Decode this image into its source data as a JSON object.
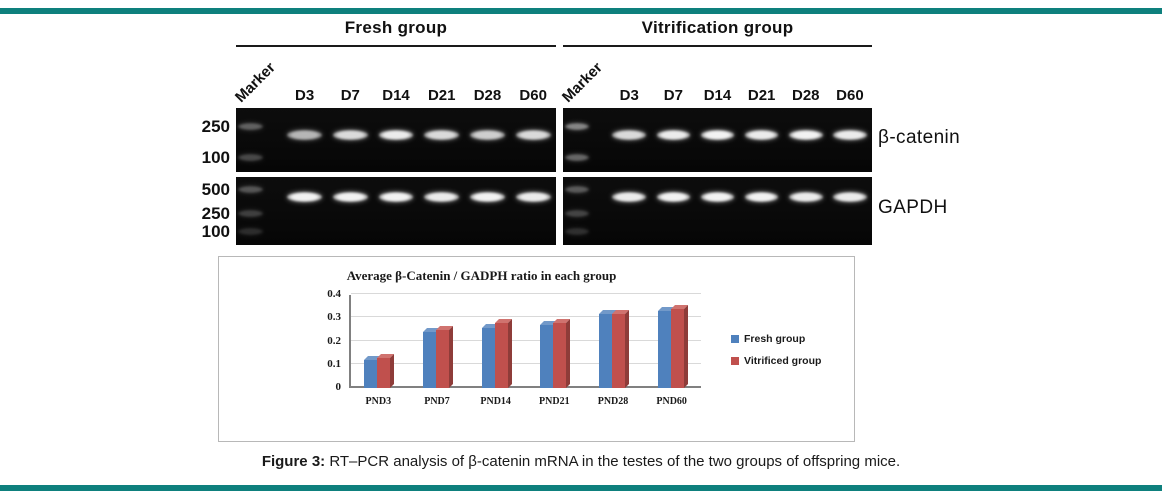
{
  "page": {
    "accent_color": "#0e807d",
    "background": "#ffffff"
  },
  "caption": {
    "label": "Figure 3:",
    "text": " RT–PCR analysis of β-catenin mRNA in the testes of the two groups of offspring mice."
  },
  "gel": {
    "groups": [
      {
        "label": "Fresh group",
        "lanes": [
          "Marker",
          "D3",
          "D7",
          "D14",
          "D21",
          "D28",
          "D60"
        ]
      },
      {
        "label": "Vitrification group",
        "lanes": [
          "Marker",
          "D3",
          "D7",
          "D14",
          "D21",
          "D28",
          "D60"
        ]
      }
    ],
    "rows": [
      {
        "label": "β-catenin",
        "ladder": [
          "250",
          "100"
        ],
        "ladder_offsets": [
          0.3,
          0.78
        ],
        "band_offset": 0.42,
        "intensities": [
          [
            0.35,
            0.7,
            0.85,
            0.92,
            0.85,
            0.8,
            0.85
          ],
          [
            0.5,
            0.85,
            0.92,
            0.95,
            0.92,
            0.95,
            0.92
          ]
        ]
      },
      {
        "label": "GAPDH",
        "ladder": [
          "500",
          "250",
          "100"
        ],
        "ladder_offsets": [
          0.19,
          0.54,
          0.81
        ],
        "band_offset": 0.3,
        "intensities": [
          [
            0.3,
            0.95,
            0.95,
            0.95,
            0.92,
            0.95,
            0.92
          ],
          [
            0.32,
            0.92,
            0.95,
            0.95,
            0.95,
            0.92,
            0.92
          ]
        ]
      }
    ]
  },
  "chart_data": {
    "type": "bar",
    "title": "Average β-Catenin / GADPH ratio in each group",
    "categories": [
      "PND3",
      "PND7",
      "PND14",
      "PND21",
      "PND28",
      "PND60"
    ],
    "series": [
      {
        "name": "Fresh group",
        "color": "#4f81bd",
        "values": [
          0.12,
          0.24,
          0.26,
          0.27,
          0.32,
          0.33
        ]
      },
      {
        "name": "Vitrificed group",
        "color": "#c0504d",
        "values": [
          0.13,
          0.25,
          0.28,
          0.28,
          0.32,
          0.34
        ]
      }
    ],
    "xlabel": "",
    "ylabel": "",
    "ylim": [
      0,
      0.4
    ],
    "yticks": [
      0,
      0.1,
      0.2,
      0.3,
      0.4
    ],
    "grid": true,
    "legend_position": "right",
    "style": "3d-clustered-column"
  }
}
